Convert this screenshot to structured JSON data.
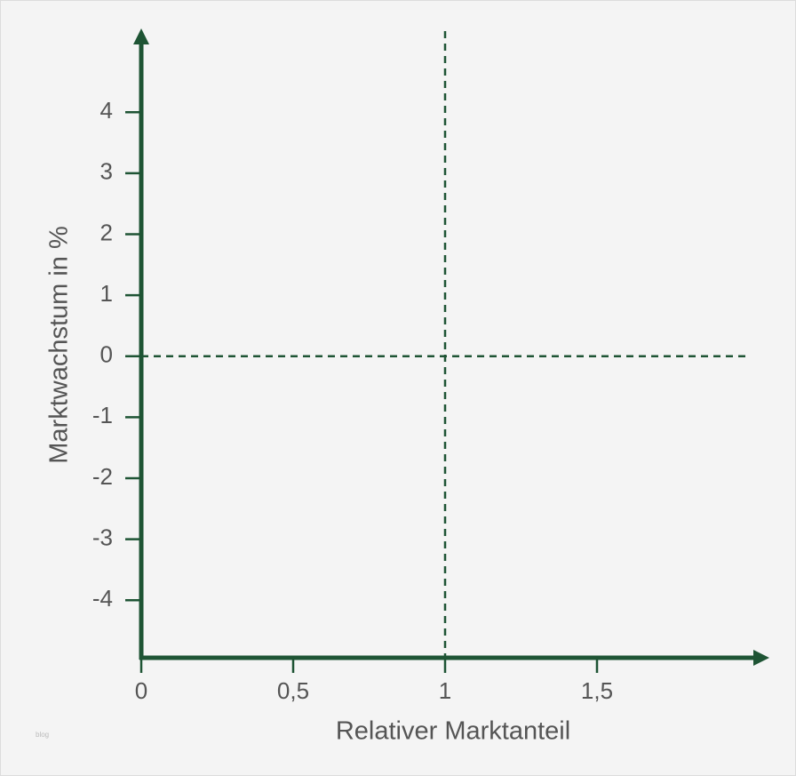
{
  "chart_data": {
    "type": "scatter",
    "xlabel": "Relativer Marktanteil",
    "ylabel": "Marktwachstum in %",
    "xlim": [
      0,
      2
    ],
    "ylim": [
      -4.9,
      5.3
    ],
    "xticks": [
      0,
      {
        "value": 0.5,
        "label": "0,5"
      },
      1,
      {
        "value": 1.5,
        "label": "1,5"
      }
    ],
    "yticks": [
      -4,
      -3,
      -2,
      -1,
      0,
      1,
      2,
      3,
      4
    ],
    "reference_lines": [
      {
        "axis": "x",
        "value": 1
      },
      {
        "axis": "y",
        "value": 0
      }
    ],
    "color": "#1e5434",
    "watermark": "blog"
  }
}
